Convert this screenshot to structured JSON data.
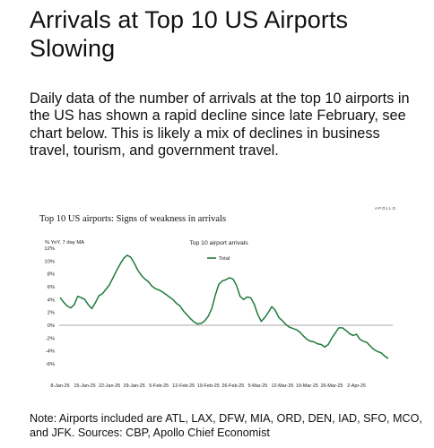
{
  "headline": "Arrivals at Top 10 US Airports Slowing",
  "body": "Daily data of the number of arrivals at the top 10 airports in the US has shown a rapid decline since late February, see chart below. This is likely a mix of declines in business travel, tourism, and government travel.",
  "note": "Note: Airports included are ATL, LAX, DFW, MIA, ORD, DEN, IAD, SFO, MCO, and JFK. Sources: CBP, Apollo Chief Economist",
  "chart_data": {
    "type": "line",
    "title": "Top 10 US airports: Signs of weakness in arrivals",
    "subtitle": "Top 10 airport arrivals",
    "brand": "APOLLO",
    "ylabel": "% YoY, 7 day MA",
    "ylim": [
      -6,
      12
    ],
    "yticks": [
      "12%",
      "10%",
      "8%",
      "6%",
      "4%",
      "2%",
      "0%",
      "-2%",
      "-4%",
      "-6%"
    ],
    "xticks": [
      "8-Jan-25",
      "15-Jan-25",
      "22-Jan-25",
      "29-Jan-25",
      "5-Feb-25",
      "12-Feb-25",
      "19-Feb-25",
      "26-Feb-25",
      "5-Mar-25",
      "12-Mar-25",
      "19-Mar-25",
      "26-Mar-25",
      "2-Apr-25"
    ],
    "legend": "top-center",
    "grid": false,
    "series": [
      {
        "name": "Total",
        "color": "#1f7a3c",
        "start_date": "8-Jan-25",
        "values": [
          4.3,
          3.6,
          3.0,
          2.7,
          3.2,
          4.5,
          4.3,
          4.0,
          3.2,
          2.6,
          3.5,
          4.6,
          4.9,
          5.6,
          6.3,
          7.4,
          8.5,
          9.5,
          10.4,
          10.9,
          10.6,
          9.7,
          8.6,
          7.8,
          7.2,
          6.8,
          6.1,
          5.7,
          5.5,
          5.2,
          4.8,
          4.4,
          4.0,
          3.4,
          3.0,
          2.2,
          1.6,
          1.0,
          0.5,
          0.2,
          0.3,
          0.7,
          1.4,
          2.6,
          4.7,
          6.4,
          6.9,
          7.1,
          7.4,
          7.2,
          6.2,
          4.5,
          4.0,
          4.4,
          4.3,
          3.3,
          1.7,
          0.6,
          1.2,
          2.0,
          2.9,
          2.3,
          1.2,
          0.7,
          0.1,
          -0.3,
          -0.5,
          -0.7,
          -1.1,
          -1.7,
          -2.2,
          -2.5,
          -2.6,
          -2.9,
          -3.0,
          -3.4,
          -3.0,
          -2.0,
          -1.2,
          -0.4,
          -0.4,
          -0.8,
          -1.3,
          -1.6,
          -1.4,
          -2.2,
          -2.5,
          -2.7,
          -3.3,
          -3.8,
          -4.1,
          -4.3,
          -4.8,
          -5.2
        ]
      }
    ]
  }
}
